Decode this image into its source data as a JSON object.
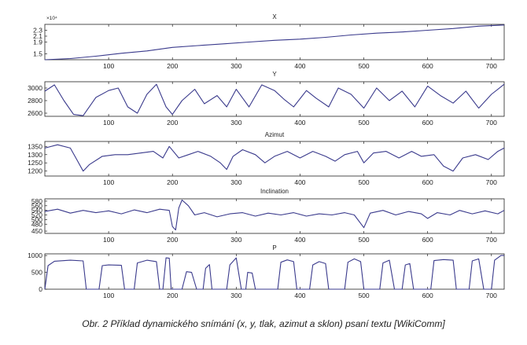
{
  "figure": {
    "caption": "Obr. 2  Příklad dynamického snímání (x, y, tlak, azimut a sklon) psaní textu [WikiComm]",
    "line_color": "#3a3a8c"
  },
  "chart_data": [
    {
      "type": "line",
      "title": "X",
      "x_range": [
        0,
        720
      ],
      "y_range": [
        1.3,
        2.5
      ],
      "y_exponent_label": "×10⁴",
      "xticks": [
        "100",
        "200",
        "300",
        "400",
        "500",
        "600",
        "700"
      ],
      "yticks": [
        "2.3",
        "2.1",
        "1.9",
        "1.5"
      ],
      "points": [
        [
          0,
          1.3
        ],
        [
          40,
          1.34
        ],
        [
          80,
          1.42
        ],
        [
          120,
          1.52
        ],
        [
          160,
          1.6
        ],
        [
          200,
          1.72
        ],
        [
          240,
          1.78
        ],
        [
          280,
          1.84
        ],
        [
          320,
          1.9
        ],
        [
          360,
          1.96
        ],
        [
          400,
          2.0
        ],
        [
          440,
          2.06
        ],
        [
          480,
          2.14
        ],
        [
          520,
          2.2
        ],
        [
          560,
          2.24
        ],
        [
          600,
          2.3
        ],
        [
          640,
          2.36
        ],
        [
          680,
          2.44
        ],
        [
          720,
          2.48
        ]
      ]
    },
    {
      "type": "line",
      "title": "Y",
      "x_range": [
        0,
        720
      ],
      "y_range": [
        2550,
        3100
      ],
      "xticks": [
        "100",
        "200",
        "300",
        "400",
        "500",
        "600",
        "700"
      ],
      "yticks": [
        "3000",
        "2800",
        "2600"
      ],
      "points": [
        [
          0,
          2950
        ],
        [
          15,
          3050
        ],
        [
          30,
          2800
        ],
        [
          45,
          2580
        ],
        [
          60,
          2560
        ],
        [
          80,
          2850
        ],
        [
          100,
          2960
        ],
        [
          115,
          3000
        ],
        [
          130,
          2700
        ],
        [
          145,
          2600
        ],
        [
          160,
          2900
        ],
        [
          175,
          3060
        ],
        [
          190,
          2700
        ],
        [
          200,
          2580
        ],
        [
          215,
          2800
        ],
        [
          235,
          2980
        ],
        [
          250,
          2750
        ],
        [
          270,
          2880
        ],
        [
          285,
          2700
        ],
        [
          300,
          2980
        ],
        [
          320,
          2700
        ],
        [
          340,
          3050
        ],
        [
          360,
          2960
        ],
        [
          375,
          2820
        ],
        [
          390,
          2700
        ],
        [
          410,
          2960
        ],
        [
          425,
          2840
        ],
        [
          445,
          2700
        ],
        [
          460,
          3000
        ],
        [
          480,
          2900
        ],
        [
          500,
          2680
        ],
        [
          520,
          3000
        ],
        [
          540,
          2800
        ],
        [
          560,
          2950
        ],
        [
          580,
          2700
        ],
        [
          600,
          3030
        ],
        [
          620,
          2880
        ],
        [
          640,
          2760
        ],
        [
          660,
          2950
        ],
        [
          680,
          2680
        ],
        [
          700,
          2900
        ],
        [
          720,
          3060
        ]
      ]
    },
    {
      "type": "line",
      "title": "Azimut",
      "x_range": [
        0,
        720
      ],
      "y_range": [
        1170,
        1380
      ],
      "xticks": [
        "100",
        "200",
        "300",
        "400",
        "500",
        "600",
        "700"
      ],
      "yticks": [
        "1350",
        "1300",
        "1250",
        "1200"
      ],
      "points": [
        [
          0,
          1340
        ],
        [
          20,
          1360
        ],
        [
          40,
          1340
        ],
        [
          50,
          1270
        ],
        [
          60,
          1200
        ],
        [
          70,
          1240
        ],
        [
          90,
          1290
        ],
        [
          110,
          1300
        ],
        [
          130,
          1300
        ],
        [
          150,
          1310
        ],
        [
          170,
          1320
        ],
        [
          185,
          1280
        ],
        [
          195,
          1350
        ],
        [
          210,
          1280
        ],
        [
          225,
          1300
        ],
        [
          240,
          1320
        ],
        [
          260,
          1290
        ],
        [
          275,
          1250
        ],
        [
          285,
          1210
        ],
        [
          295,
          1290
        ],
        [
          310,
          1330
        ],
        [
          330,
          1300
        ],
        [
          345,
          1250
        ],
        [
          360,
          1290
        ],
        [
          380,
          1320
        ],
        [
          400,
          1280
        ],
        [
          420,
          1320
        ],
        [
          440,
          1290
        ],
        [
          455,
          1260
        ],
        [
          470,
          1300
        ],
        [
          490,
          1320
        ],
        [
          500,
          1250
        ],
        [
          515,
          1310
        ],
        [
          535,
          1320
        ],
        [
          555,
          1280
        ],
        [
          575,
          1320
        ],
        [
          590,
          1290
        ],
        [
          610,
          1300
        ],
        [
          625,
          1230
        ],
        [
          640,
          1200
        ],
        [
          655,
          1280
        ],
        [
          675,
          1300
        ],
        [
          695,
          1270
        ],
        [
          710,
          1320
        ],
        [
          720,
          1340
        ]
      ]
    },
    {
      "type": "line",
      "title": "Inclination",
      "x_range": [
        0,
        720
      ],
      "y_range": [
        440,
        590
      ],
      "xticks": [
        "100",
        "200",
        "300",
        "400",
        "500",
        "600",
        "700"
      ],
      "yticks": [
        "580",
        "560",
        "540",
        "520",
        "500",
        "480",
        "450"
      ],
      "points": [
        [
          0,
          535
        ],
        [
          20,
          545
        ],
        [
          40,
          528
        ],
        [
          60,
          540
        ],
        [
          80,
          530
        ],
        [
          100,
          538
        ],
        [
          120,
          525
        ],
        [
          140,
          542
        ],
        [
          160,
          530
        ],
        [
          180,
          545
        ],
        [
          195,
          540
        ],
        [
          200,
          470
        ],
        [
          205,
          455
        ],
        [
          210,
          550
        ],
        [
          215,
          585
        ],
        [
          225,
          560
        ],
        [
          235,
          520
        ],
        [
          250,
          530
        ],
        [
          270,
          512
        ],
        [
          290,
          525
        ],
        [
          310,
          530
        ],
        [
          330,
          515
        ],
        [
          350,
          528
        ],
        [
          370,
          520
        ],
        [
          390,
          530
        ],
        [
          410,
          515
        ],
        [
          430,
          525
        ],
        [
          450,
          520
        ],
        [
          470,
          530
        ],
        [
          485,
          520
        ],
        [
          500,
          465
        ],
        [
          510,
          528
        ],
        [
          530,
          540
        ],
        [
          550,
          520
        ],
        [
          570,
          535
        ],
        [
          590,
          525
        ],
        [
          600,
          505
        ],
        [
          615,
          530
        ],
        [
          635,
          520
        ],
        [
          650,
          540
        ],
        [
          670,
          525
        ],
        [
          690,
          538
        ],
        [
          710,
          525
        ],
        [
          720,
          540
        ]
      ]
    },
    {
      "type": "line",
      "title": "P",
      "x_range": [
        0,
        720
      ],
      "y_range": [
        0,
        1050
      ],
      "xticks": [
        "100",
        "200",
        "300",
        "400",
        "500",
        "600",
        "700"
      ],
      "yticks": [
        "1000",
        "500",
        "0"
      ],
      "points": [
        [
          0,
          0
        ],
        [
          5,
          700
        ],
        [
          15,
          830
        ],
        [
          40,
          860
        ],
        [
          60,
          840
        ],
        [
          65,
          0
        ],
        [
          85,
          0
        ],
        [
          90,
          700
        ],
        [
          100,
          720
        ],
        [
          120,
          710
        ],
        [
          125,
          0
        ],
        [
          140,
          0
        ],
        [
          145,
          780
        ],
        [
          160,
          860
        ],
        [
          175,
          820
        ],
        [
          180,
          0
        ],
        [
          185,
          0
        ],
        [
          190,
          930
        ],
        [
          195,
          920
        ],
        [
          198,
          0
        ],
        [
          215,
          0
        ],
        [
          222,
          520
        ],
        [
          230,
          500
        ],
        [
          238,
          0
        ],
        [
          248,
          0
        ],
        [
          252,
          620
        ],
        [
          258,
          730
        ],
        [
          262,
          0
        ],
        [
          285,
          0
        ],
        [
          290,
          720
        ],
        [
          300,
          930
        ],
        [
          308,
          0
        ],
        [
          315,
          0
        ],
        [
          318,
          500
        ],
        [
          325,
          480
        ],
        [
          330,
          0
        ],
        [
          365,
          0
        ],
        [
          370,
          800
        ],
        [
          380,
          870
        ],
        [
          390,
          820
        ],
        [
          395,
          0
        ],
        [
          415,
          0
        ],
        [
          420,
          720
        ],
        [
          430,
          820
        ],
        [
          440,
          760
        ],
        [
          445,
          0
        ],
        [
          470,
          0
        ],
        [
          475,
          800
        ],
        [
          485,
          900
        ],
        [
          495,
          820
        ],
        [
          500,
          0
        ],
        [
          525,
          0
        ],
        [
          530,
          780
        ],
        [
          540,
          860
        ],
        [
          548,
          0
        ],
        [
          560,
          0
        ],
        [
          565,
          720
        ],
        [
          572,
          760
        ],
        [
          578,
          0
        ],
        [
          605,
          0
        ],
        [
          610,
          850
        ],
        [
          625,
          880
        ],
        [
          640,
          860
        ],
        [
          645,
          0
        ],
        [
          665,
          0
        ],
        [
          670,
          840
        ],
        [
          680,
          900
        ],
        [
          688,
          0
        ],
        [
          700,
          0
        ],
        [
          705,
          860
        ],
        [
          715,
          1000
        ],
        [
          720,
          1000
        ]
      ]
    }
  ]
}
